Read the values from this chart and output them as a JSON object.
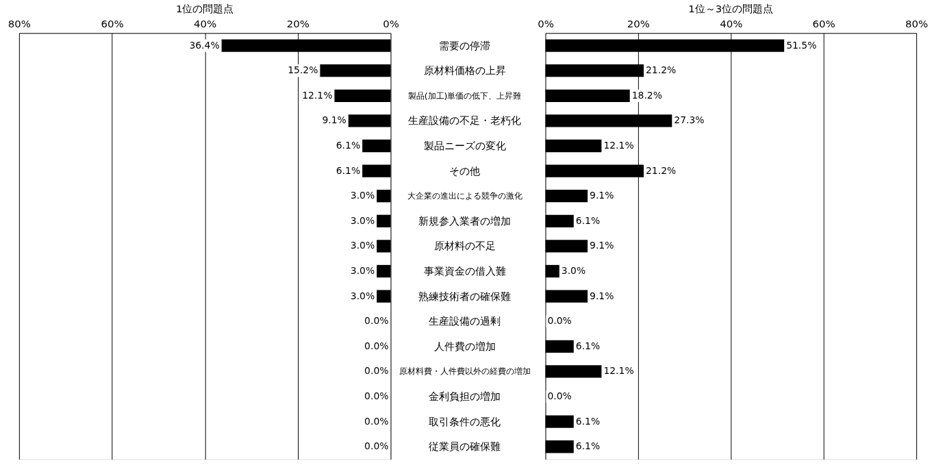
{
  "chart_data": [
    {
      "type": "bar",
      "orientation": "horizontal",
      "title": "1位の問題点",
      "categories": [
        "需要の停滞",
        "原材料価格の上昇",
        "製品(加工)単価の低下、上昇難",
        "生産設備の不足・老朽化",
        "製品ニーズの変化",
        "その他",
        "大企業の進出による競争の激化",
        "新規参入業者の増加",
        "原材料の不足",
        "事業資金の借入難",
        "熟練技術者の確保難",
        "生産設備の過剰",
        "人件費の増加",
        "原材料費・人件費以外の経費の増加",
        "金利負担の増加",
        "取引条件の悪化",
        "従業員の確保難"
      ],
      "color": "#000000",
      "values": [
        36.4,
        15.2,
        12.1,
        9.1,
        6.1,
        6.1,
        3.0,
        3.0,
        3.0,
        3.0,
        3.0,
        0.0,
        0.0,
        0.0,
        0.0,
        0.0,
        0.0
      ],
      "value_labels": [
        "36.4%",
        "15.2%",
        "12.1%",
        "9.1%",
        "6.1%",
        "6.1%",
        "3.0%",
        "3.0%",
        "3.0%",
        "3.0%",
        "3.0%",
        "0.0%",
        "0.0%",
        "0.0%",
        "0.0%",
        "0.0%",
        "0.0%"
      ],
      "xlim": [
        80,
        0
      ],
      "xticks": [
        {
          "value": 80,
          "label": "80%"
        },
        {
          "value": 60,
          "label": "60%"
        },
        {
          "value": 40,
          "label": "40%"
        },
        {
          "value": 20,
          "label": "20%"
        },
        {
          "value": 0,
          "label": "0%"
        }
      ],
      "grid": "x"
    },
    {
      "type": "bar",
      "orientation": "horizontal",
      "title": "1位～3位の問題点",
      "categories": [
        "需要の停滞",
        "原材料価格の上昇",
        "製品(加工)単価の低下、上昇難",
        "生産設備の不足・老朽化",
        "製品ニーズの変化",
        "その他",
        "大企業の進出による競争の激化",
        "新規参入業者の増加",
        "原材料の不足",
        "事業資金の借入難",
        "熟練技術者の確保難",
        "生産設備の過剰",
        "人件費の増加",
        "原材料費・人件費以外の経費の増加",
        "金利負担の増加",
        "取引条件の悪化",
        "従業員の確保難"
      ],
      "color": "#000000",
      "values": [
        51.5,
        21.2,
        18.2,
        27.3,
        12.1,
        21.2,
        9.1,
        6.1,
        9.1,
        3.0,
        9.1,
        0.0,
        6.1,
        12.1,
        0.0,
        6.1,
        6.1
      ],
      "value_labels": [
        "51.5%",
        "21.2%",
        "18.2%",
        "27.3%",
        "12.1%",
        "21.2%",
        "9.1%",
        "6.1%",
        "9.1%",
        "3.0%",
        "9.1%",
        "0.0%",
        "6.1%",
        "12.1%",
        "0.0%",
        "6.1%",
        "6.1%"
      ],
      "xlim": [
        0,
        80
      ],
      "xticks": [
        {
          "value": 0,
          "label": "0%"
        },
        {
          "value": 20,
          "label": "20%"
        },
        {
          "value": 40,
          "label": "40%"
        },
        {
          "value": 60,
          "label": "60%"
        },
        {
          "value": 80,
          "label": "80%"
        }
      ],
      "grid": "x",
      "tick_labels": "x"
    }
  ]
}
